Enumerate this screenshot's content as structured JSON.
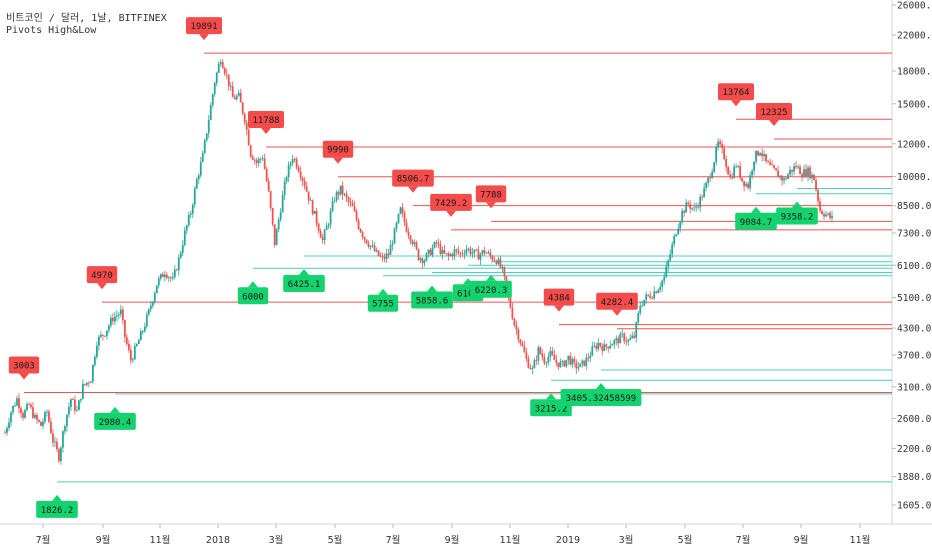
{
  "header": {
    "symbol_line": "비트코인 / 달러, 1날, BITFINEX",
    "indicator_line": "Pivots High&Low"
  },
  "colors": {
    "up": "#26a69a",
    "down": "#ef5350",
    "high_label": "#f44b4b",
    "low_label": "#14d26e",
    "high_line": "#ef5350",
    "low_line": "#4dd0b8",
    "axis_text": "#333333",
    "grid": "#eeeeee"
  },
  "chart_data": {
    "type": "candlestick",
    "title": "",
    "y_scale": "log",
    "ylim": [
      1450,
      27000
    ],
    "y_ticks": [
      {
        "v": 26000,
        "l": "26000.0"
      },
      {
        "v": 22000,
        "l": "22000.0"
      },
      {
        "v": 18000,
        "l": "18000.0"
      },
      {
        "v": 15000,
        "l": "15000.0"
      },
      {
        "v": 12000,
        "l": "12000.0"
      },
      {
        "v": 10000,
        "l": "10000.0"
      },
      {
        "v": 8500,
        "l": "8500.0"
      },
      {
        "v": 7300,
        "l": "7300.0"
      },
      {
        "v": 6100,
        "l": "6100.0"
      },
      {
        "v": 5100,
        "l": "5100.0"
      },
      {
        "v": 4300,
        "l": "4300.0"
      },
      {
        "v": 3700,
        "l": "3700.0"
      },
      {
        "v": 3100,
        "l": "3100.0"
      },
      {
        "v": 2600,
        "l": "2600.0"
      },
      {
        "v": 2200,
        "l": "2200.0"
      },
      {
        "v": 1880,
        "l": "1880.0"
      },
      {
        "v": 1605,
        "l": "1605.0"
      }
    ],
    "x_ticks": [
      "7월",
      "9월",
      "11월",
      "2018",
      "3월",
      "5월",
      "7월",
      "9월",
      "11월",
      "2019",
      "3월",
      "5월",
      "7월",
      "9월",
      "11월"
    ],
    "price_path": [
      [
        0,
        2400
      ],
      [
        3,
        2700
      ],
      [
        6,
        2900
      ],
      [
        9,
        2650
      ],
      [
        12,
        2800
      ],
      [
        15,
        2600
      ],
      [
        18,
        2500
      ],
      [
        21,
        2700
      ],
      [
        24,
        2300
      ],
      [
        27,
        2100
      ],
      [
        30,
        2550
      ],
      [
        33,
        2900
      ],
      [
        36,
        2700
      ],
      [
        39,
        3100
      ],
      [
        43,
        3250
      ],
      [
        46,
        4000
      ],
      [
        50,
        4200
      ],
      [
        54,
        4550
      ],
      [
        58,
        4700
      ],
      [
        60,
        4100
      ],
      [
        63,
        3600
      ],
      [
        66,
        3900
      ],
      [
        69,
        4250
      ],
      [
        72,
        4700
      ],
      [
        76,
        5500
      ],
      [
        80,
        5900
      ],
      [
        84,
        5600
      ],
      [
        87,
        6300
      ],
      [
        90,
        7300
      ],
      [
        93,
        8200
      ],
      [
        96,
        9800
      ],
      [
        99,
        11200
      ],
      [
        102,
        13800
      ],
      [
        105,
        17000
      ],
      [
        108,
        19400
      ],
      [
        111,
        17500
      ],
      [
        114,
        15500
      ],
      [
        117,
        15600
      ],
      [
        120,
        13800
      ],
      [
        123,
        11400
      ],
      [
        126,
        10800
      ],
      [
        129,
        11200
      ],
      [
        132,
        9100
      ],
      [
        135,
        6900
      ],
      [
        138,
        8400
      ],
      [
        141,
        10100
      ],
      [
        144,
        11200
      ],
      [
        147,
        10500
      ],
      [
        150,
        9600
      ],
      [
        153,
        8600
      ],
      [
        156,
        7800
      ],
      [
        159,
        7000
      ],
      [
        162,
        7800
      ],
      [
        165,
        8900
      ],
      [
        168,
        9300
      ],
      [
        171,
        8800
      ],
      [
        174,
        8400
      ],
      [
        177,
        7600
      ],
      [
        180,
        7100
      ],
      [
        183,
        6800
      ],
      [
        186,
        6500
      ],
      [
        189,
        6300
      ],
      [
        192,
        6500
      ],
      [
        195,
        7300
      ],
      [
        198,
        8300
      ],
      [
        201,
        7500
      ],
      [
        204,
        7000
      ],
      [
        207,
        6400
      ],
      [
        210,
        6300
      ],
      [
        213,
        6600
      ],
      [
        216,
        6900
      ],
      [
        219,
        6500
      ],
      [
        222,
        6400
      ],
      [
        225,
        6600
      ],
      [
        228,
        6500
      ],
      [
        231,
        6700
      ],
      [
        234,
        6550
      ],
      [
        237,
        6450
      ],
      [
        240,
        6600
      ],
      [
        243,
        6400
      ],
      [
        246,
        6300
      ],
      [
        249,
        5900
      ],
      [
        252,
        5100
      ],
      [
        255,
        4400
      ],
      [
        258,
        4000
      ],
      [
        261,
        3600
      ],
      [
        264,
        3400
      ],
      [
        267,
        3800
      ],
      [
        270,
        3600
      ],
      [
        273,
        3700
      ],
      [
        276,
        3550
      ],
      [
        279,
        3500
      ],
      [
        282,
        3650
      ],
      [
        285,
        3480
      ],
      [
        288,
        3470
      ],
      [
        291,
        3600
      ],
      [
        294,
        3800
      ],
      [
        297,
        3950
      ],
      [
        300,
        3850
      ],
      [
        303,
        3950
      ],
      [
        306,
        4000
      ],
      [
        309,
        4100
      ],
      [
        312,
        4000
      ],
      [
        315,
        4100
      ],
      [
        318,
        4900
      ],
      [
        321,
        5100
      ],
      [
        324,
        5200
      ],
      [
        327,
        5400
      ],
      [
        330,
        5700
      ],
      [
        333,
        6500
      ],
      [
        336,
        7400
      ],
      [
        339,
        8200
      ],
      [
        342,
        8600
      ],
      [
        345,
        8300
      ],
      [
        348,
        8800
      ],
      [
        351,
        9500
      ],
      [
        354,
        10500
      ],
      [
        357,
        12000
      ],
      [
        360,
        11200
      ],
      [
        363,
        9900
      ],
      [
        366,
        10700
      ],
      [
        369,
        9800
      ],
      [
        372,
        9500
      ],
      [
        375,
        11100
      ],
      [
        378,
        11600
      ],
      [
        381,
        10800
      ],
      [
        384,
        10400
      ],
      [
        387,
        10100
      ],
      [
        390,
        9800
      ],
      [
        393,
        10300
      ],
      [
        396,
        10600
      ],
      [
        399,
        10200
      ],
      [
        402,
        10300
      ],
      [
        405,
        9900
      ],
      [
        408,
        8300
      ],
      [
        411,
        8100
      ],
      [
        414,
        7900
      ]
    ],
    "pivots_high": [
      {
        "label": "3003",
        "value": 3003,
        "px": 24,
        "lineX": 24
      },
      {
        "label": "4970",
        "value": 4970,
        "px": 102,
        "lineX": 102
      },
      {
        "label": "19891",
        "value": 19891,
        "px": 204,
        "lineX": 204
      },
      {
        "label": "11788",
        "value": 11788,
        "px": 266,
        "lineX": 266
      },
      {
        "label": "9990",
        "value": 9990,
        "px": 338,
        "lineX": 338
      },
      {
        "label": "8506.7",
        "value": 8506.7,
        "px": 413,
        "lineX": 413
      },
      {
        "label": "7429.2",
        "value": 7429.2,
        "px": 451,
        "lineX": 451
      },
      {
        "label": "7788",
        "value": 7788,
        "px": 491,
        "lineX": 491
      },
      {
        "label": "4384",
        "value": 4384,
        "px": 559,
        "lineX": 559
      },
      {
        "label": "4282.4",
        "value": 4282.4,
        "px": 617,
        "lineX": 617
      },
      {
        "label": "13764",
        "value": 13764,
        "px": 736,
        "lineX": 736
      },
      {
        "label": "12325",
        "value": 12325,
        "px": 774,
        "lineX": 774
      }
    ],
    "pivots_low": [
      {
        "label": "1826.2",
        "value": 1826.2,
        "px": 57,
        "lineX": 57
      },
      {
        "label": "2980.4",
        "value": 2980.4,
        "px": 115,
        "lineX": 115
      },
      {
        "label": "6000",
        "value": 6000,
        "px": 253,
        "lineX": 253
      },
      {
        "label": "6425.1",
        "value": 6425.1,
        "px": 304,
        "lineX": 304
      },
      {
        "label": "5755",
        "value": 5755,
        "px": 383,
        "lineX": 383
      },
      {
        "label": "5858.6",
        "value": 5858.6,
        "px": 432,
        "lineX": 432
      },
      {
        "label": "6100",
        "value": 6100,
        "px": 468,
        "lineX": 468
      },
      {
        "label": "6220.3",
        "value": 6220.3,
        "px": 491,
        "lineX": 491
      },
      {
        "label": "3215.2",
        "value": 3215.2,
        "px": 551,
        "lineX": 551
      },
      {
        "label": "3405.32458599",
        "value": 3405.32458599,
        "px": 601,
        "lineX": 601
      },
      {
        "label": "9084.7",
        "value": 9084.7,
        "px": 756,
        "lineX": 756
      },
      {
        "label": "9358.2",
        "value": 9358.2,
        "px": 797,
        "lineX": 797
      }
    ]
  }
}
